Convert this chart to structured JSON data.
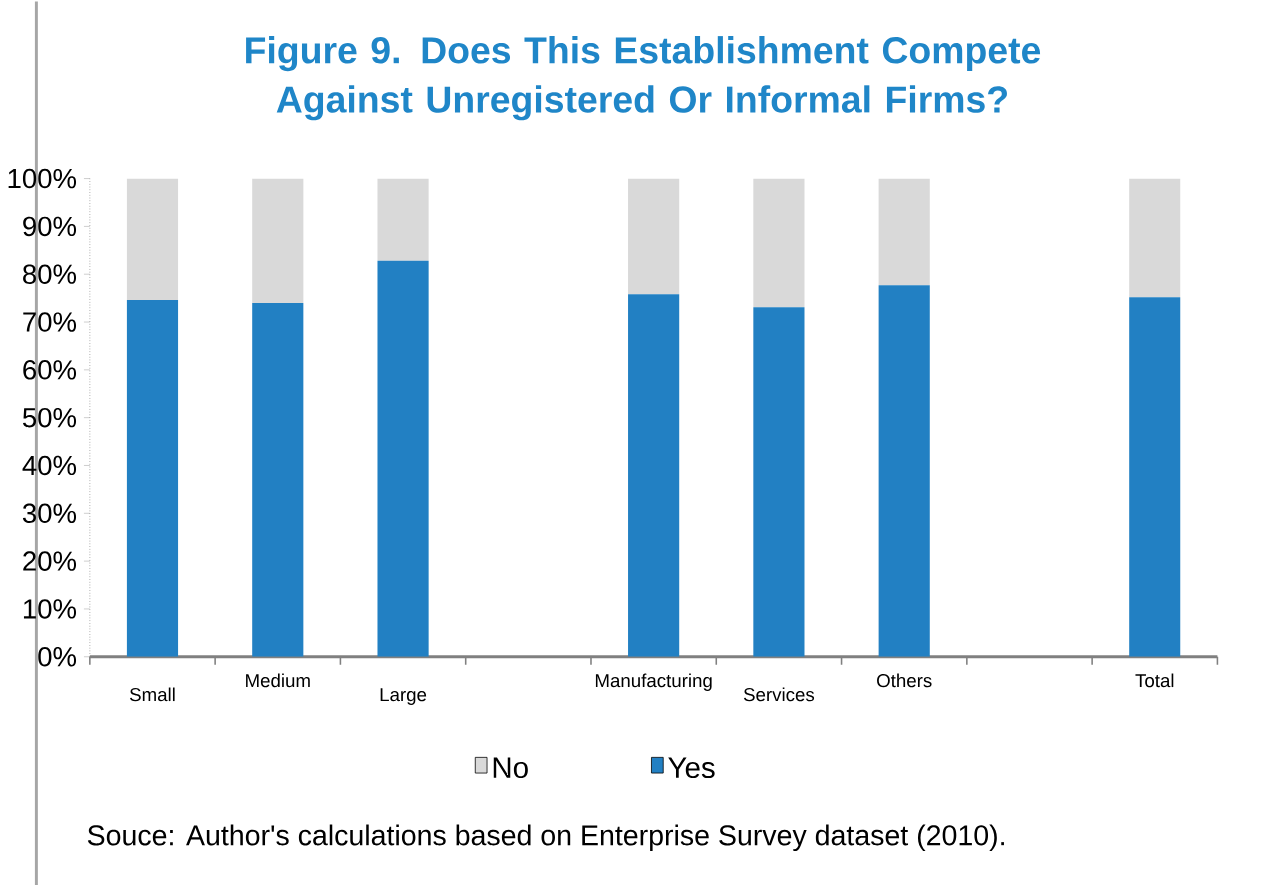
{
  "chart_data": {
    "type": "bar",
    "stacked": true,
    "title": "Figure 9. Does This Establishment Compete Against Unregistered Or Informal Firms?",
    "categories": [
      "Small",
      "Medium",
      "Large",
      null,
      "Manufacturing",
      "Services",
      "Others",
      null,
      "Total"
    ],
    "series": [
      {
        "name": "Yes",
        "color": "#2280c3",
        "values": [
          74.6,
          74,
          82.8,
          null,
          75.8,
          73.1,
          77.7,
          null,
          75.2
        ]
      },
      {
        "name": "No",
        "color": "#d9d9d9",
        "values": [
          25.4,
          26,
          17.2,
          null,
          24.2,
          26.9,
          22.3,
          null,
          24.8
        ]
      }
    ],
    "ylim": [
      0,
      100
    ],
    "yticks": [
      {
        "value": 0,
        "label": "0%"
      },
      {
        "value": 10,
        "label": "10%"
      },
      {
        "value": 20,
        "label": "20%"
      },
      {
        "value": 30,
        "label": "30%"
      },
      {
        "value": 40,
        "label": "40%"
      },
      {
        "value": 50,
        "label": "50%"
      },
      {
        "value": 60,
        "label": "60%"
      },
      {
        "value": 70,
        "label": "70%"
      },
      {
        "value": 80,
        "label": "80%"
      },
      {
        "value": 90,
        "label": "90%"
      },
      {
        "value": 100,
        "label": "100%"
      }
    ],
    "legend": "bottom",
    "grid": false,
    "annotations": [
      "Souce: Author's calculations based on Enterprise Survey dataset (2010)."
    ]
  }
}
